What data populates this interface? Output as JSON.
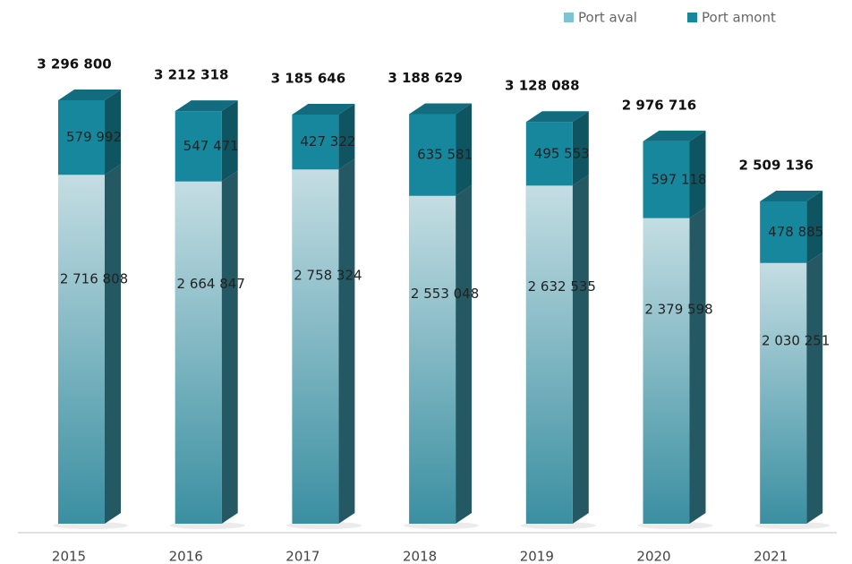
{
  "chart_data": {
    "type": "bar",
    "categories": [
      "2015",
      "2016",
      "2017",
      "2018",
      "2019",
      "2020",
      "2021"
    ],
    "series": [
      {
        "name": "Port aval",
        "color": "#3a8fa1",
        "values": [
          2716808,
          2664847,
          2758324,
          2553048,
          2632535,
          2379598,
          2030251
        ],
        "value_labels": [
          "2 716 808",
          "2 664 847",
          "2 758 324",
          "2 553 048",
          "2 632 535",
          "2 379 598",
          "2 030 251"
        ]
      },
      {
        "name": "Port amont",
        "color": "#16879d",
        "values": [
          579992,
          547471,
          427322,
          635581,
          495553,
          597118,
          478885
        ],
        "value_labels": [
          "579 992",
          "547 471",
          "427 322",
          "635 581",
          "495 553",
          "597 118",
          "478 885"
        ]
      }
    ],
    "totals": [
      3296800,
      3212318,
      3185646,
      3188629,
      3128088,
      2976716,
      2509136
    ],
    "total_labels": [
      "3 296 800",
      "3 212 318",
      "3 185 646",
      "3 188 629",
      "3 128 088",
      "2 976 716",
      "2 509 136"
    ]
  }
}
